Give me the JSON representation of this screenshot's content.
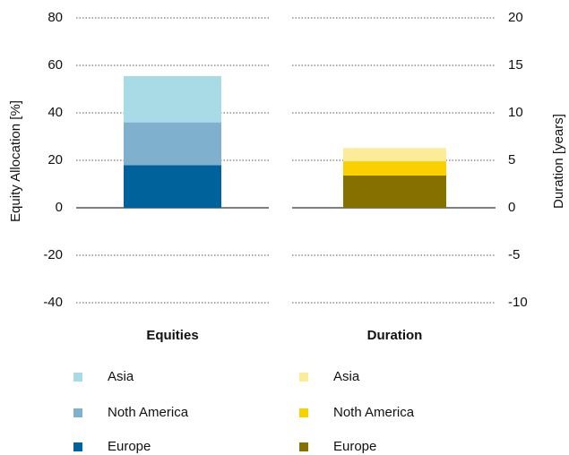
{
  "chart_data": {
    "type": "bar",
    "stacked": true,
    "categories": [
      "Equities",
      "Duration"
    ],
    "ylabel": "Equity Allocation  [%]",
    "y2label": "Duration [years]",
    "ylim": [
      -40,
      80
    ],
    "yticks": [
      -40,
      -20,
      0,
      20,
      40,
      60,
      80
    ],
    "y2lim": [
      -10,
      20
    ],
    "y2ticks": [
      -10,
      -5,
      0,
      5,
      10,
      15,
      20
    ],
    "grid": true,
    "series": [
      {
        "name": "Europe",
        "color": "#00629b",
        "values": [
          18,
          null
        ]
      },
      {
        "name": "Noth America",
        "color": "#7fb0cd",
        "values": [
          18,
          null
        ]
      },
      {
        "name": "Asia",
        "color": "#a8dbe6",
        "values": [
          19.5,
          null
        ]
      },
      {
        "name": "Europe",
        "color": "#857000",
        "axis": "y2",
        "values": [
          null,
          3.4
        ]
      },
      {
        "name": "Noth America",
        "color": "#fcd000",
        "axis": "y2",
        "values": [
          null,
          1.5
        ]
      },
      {
        "name": "Asia",
        "color": "#fcec9a",
        "axis": "y2",
        "values": [
          null,
          1.4
        ]
      }
    ]
  }
}
